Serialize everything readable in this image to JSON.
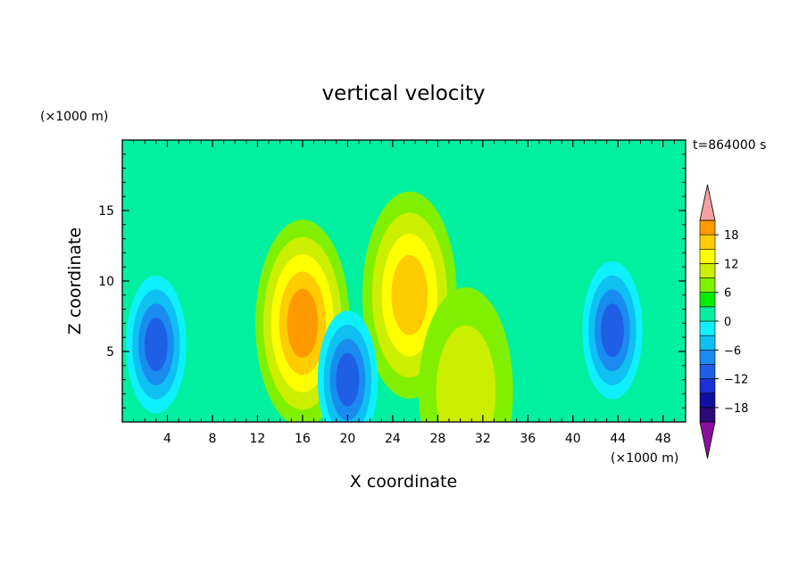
{
  "chart_data": {
    "type": "heatmap",
    "title": "vertical velocity",
    "xlabel": "X coordinate",
    "ylabel": "Z coordinate",
    "x_unit": "(×1000 m)",
    "y_unit": "(×1000 m)",
    "time_label": "t=864000 s",
    "xlim": [
      0,
      50
    ],
    "ylim": [
      0,
      20
    ],
    "x_ticks": [
      "4",
      "8",
      "12",
      "16",
      "20",
      "24",
      "28",
      "32",
      "36",
      "40",
      "44",
      "48"
    ],
    "y_ticks": [
      "5",
      "10",
      "15"
    ],
    "x_tick_values": [
      4,
      8,
      12,
      16,
      20,
      24,
      28,
      32,
      36,
      40,
      44,
      48
    ],
    "y_tick_values": [
      5,
      10,
      15
    ],
    "colorbar": {
      "levels": [
        -21,
        -18,
        -15,
        -12,
        -9,
        -6,
        -3,
        0,
        3,
        6,
        9,
        12,
        15,
        18,
        21
      ],
      "labels": [
        "18",
        "12",
        "6",
        "0",
        "−6",
        "−12",
        "−18"
      ],
      "label_values": [
        18,
        12,
        6,
        0,
        -6,
        -12,
        -18
      ],
      "colors": [
        "#2a0a7a",
        "#1010a0",
        "#1c2fd8",
        "#1f5fe6",
        "#1a8cf0",
        "#0fc0f2",
        "#0ff0ff",
        "#00f0a0",
        "#00ee00",
        "#80f000",
        "#ccee00",
        "#ffff00",
        "#ffcc00",
        "#ff9900",
        "#ff5a00",
        "#ff1a00"
      ],
      "under_color": "#8a10a0",
      "over_color": "#f4a0a0",
      "background": "#00f0a0"
    },
    "features": [
      {
        "x": 16,
        "z": 7,
        "peak": 16
      },
      {
        "x": 25.5,
        "z": 9,
        "peak": 13
      },
      {
        "x": 30.5,
        "z": 2.2,
        "peak": 8
      },
      {
        "x": 20,
        "z": 3,
        "peak": -14
      },
      {
        "x": 3,
        "z": 5.5,
        "peak": -12
      },
      {
        "x": 43.5,
        "z": 6.5,
        "peak": -13
      }
    ]
  }
}
